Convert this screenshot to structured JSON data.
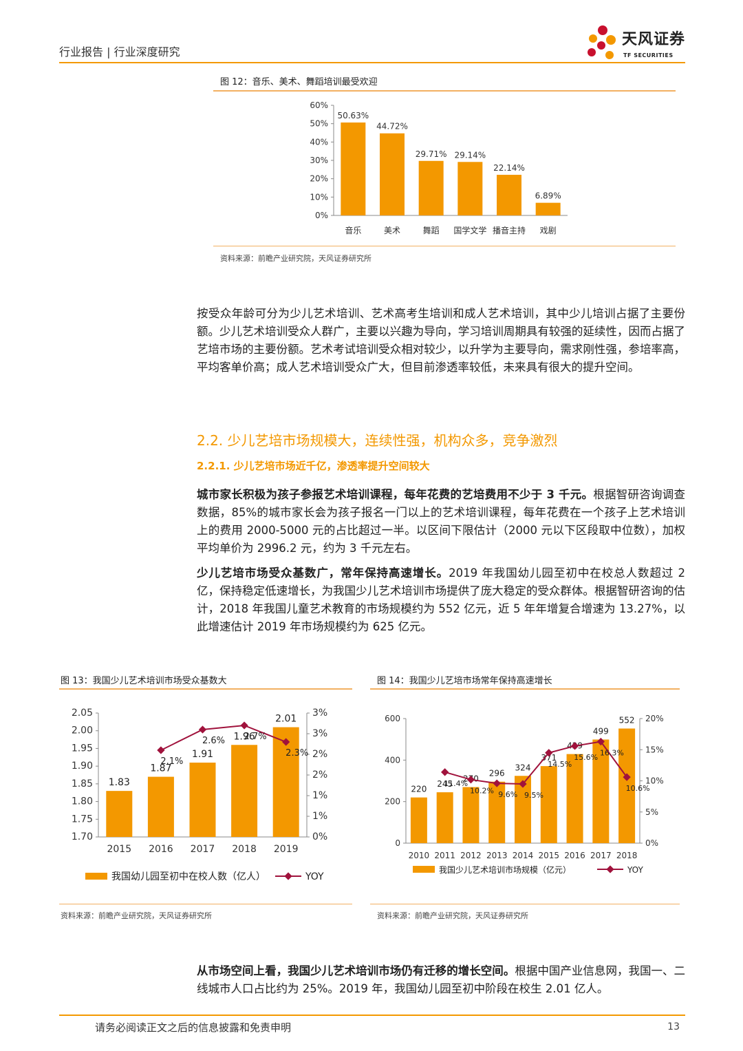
{
  "header": {
    "title": "行业报告 | 行业深度研究"
  },
  "logo": {
    "name_cn": "天风证券",
    "name_en": "TF SECURITIES"
  },
  "figure12": {
    "title": "图 12：音乐、美术、舞蹈培训最受欢迎",
    "source": "资料来源：前瞻产业研究院，天风证券研究所",
    "chart_data": {
      "type": "bar",
      "categories": [
        "音乐",
        "美术",
        "舞蹈",
        "国学文学",
        "播音主持",
        "戏剧"
      ],
      "values": [
        50.63,
        44.72,
        29.71,
        29.14,
        22.14,
        6.89
      ],
      "value_labels": [
        "50.63%",
        "44.72%",
        "29.71%",
        "29.14%",
        "22.14%",
        "6.89%"
      ],
      "yticks": [
        "0%",
        "10%",
        "20%",
        "30%",
        "40%",
        "50%",
        "60%"
      ],
      "ylim": [
        0,
        60
      ],
      "color": "#f39800"
    }
  },
  "paragraph1": "按受众年龄可分为少儿艺术培训、艺术高考生培训和成人艺术培训，其中少儿培训占据了主要份额。少儿艺术培训受众人群广，主要以兴趣为导向，学习培训周期具有较强的延续性，因而占据了艺培市场的主要份额。艺术考试培训受众相对较少，以升学为主要导向，需求刚性强，参培率高，平均客单价高；成人艺术培训受众广大，但目前渗透率较低，未来具有很大的提升空间。",
  "section_h2": "2.2. 少儿艺培市场规模大，连续性强，机构众多，竞争激烈",
  "section_h3": "2.2.1. 少儿艺培市场近千亿，渗透率提升空间较大",
  "paragraph2": {
    "bold": "城市家长积极为孩子参报艺术培训课程，每年花费的艺培费用不少于 3 千元。",
    "rest": "根据智研咨询调查数据，85%的城市家长会为孩子报名一门以上的艺术培训课程，每年花费在一个孩子上艺术培训上的费用 2000-5000 元的占比超过一半。以区间下限估计（2000 元以下区段取中位数），加权平均单价为 2996.2 元，约为 3 千元左右。"
  },
  "paragraph3": {
    "bold": "少儿艺培市场受众基数广，常年保持高速增长。",
    "rest": "2019 年我国幼儿园至初中在校总人数超过 2 亿，保持稳定低速增长，为我国少儿艺术培训市场提供了庞大稳定的受众群体。根据智研咨询的估计，2018 年我国儿童艺术教育的市场规模约为 552 亿元，近 5 年年增复合增速为 13.27%，以此增速估计 2019 年市场规模约为 625 亿元。"
  },
  "figure13": {
    "title": "图 13：我国少儿艺术培训市场受众基数大",
    "source": "资料来源：前瞻产业研究院，天风证券研究所",
    "chart_data": {
      "type": "bar",
      "categories": [
        "2015",
        "2016",
        "2017",
        "2018",
        "2019"
      ],
      "series": [
        {
          "name": "我国幼儿园至初中在校人数（亿人）",
          "type": "bar",
          "values": [
            1.83,
            1.87,
            1.91,
            1.96,
            2.01
          ],
          "labels": [
            "1.83",
            "1.87",
            "1.91",
            "1.96",
            "2.01"
          ],
          "color": "#f39800"
        },
        {
          "name": "YOY",
          "type": "line",
          "values": [
            null,
            2.1,
            2.6,
            2.7,
            2.3
          ],
          "labels": [
            "",
            "2.1%",
            "2.6%",
            "2.7%",
            "2.3%"
          ],
          "color": "#a0123c"
        }
      ],
      "yticks_left": [
        "1.70",
        "1.75",
        "1.80",
        "1.85",
        "1.90",
        "1.95",
        "2.00",
        "2.05"
      ],
      "ylim_left": [
        1.7,
        2.05
      ],
      "yticks_right": [
        "0%",
        "1%",
        "1%",
        "2%",
        "2%",
        "3%",
        "3%"
      ],
      "ylim_right": [
        0,
        3
      ]
    }
  },
  "figure14": {
    "title": "图 14：我国少儿艺培市场常年保持高速增长",
    "source": "资料来源：前瞻产业研究院，天风证券研究所",
    "chart_data": {
      "type": "bar",
      "categories": [
        "2010",
        "2011",
        "2012",
        "2013",
        "2014",
        "2015",
        "2016",
        "2017",
        "2018"
      ],
      "series": [
        {
          "name": "我国少儿艺术培训市场规模（亿元）",
          "type": "bar",
          "values": [
            220,
            245,
            270,
            296,
            324,
            371,
            429,
            499,
            552
          ],
          "labels": [
            "220",
            "245",
            "270",
            "296",
            "324",
            "371",
            "429",
            "499",
            "552"
          ],
          "color": "#f39800"
        },
        {
          "name": "YOY",
          "type": "line",
          "values": [
            null,
            11.4,
            10.2,
            9.6,
            9.5,
            14.5,
            15.6,
            16.3,
            10.6
          ],
          "labels": [
            "",
            "11.4%",
            "10.2%",
            "9.6%",
            "9.5%",
            "14.5%",
            "15.6%",
            "16.3%",
            "10.6%"
          ],
          "color": "#a0123c"
        }
      ],
      "yticks_left": [
        "0",
        "200",
        "400",
        "600"
      ],
      "ylim_left": [
        0,
        600
      ],
      "yticks_right": [
        "0%",
        "5%",
        "10%",
        "15%",
        "20%"
      ],
      "ylim_right": [
        0,
        20
      ]
    }
  },
  "paragraph4": {
    "bold": "从市场空间上看，我国少儿艺术培训市场仍有迁移的增长空间。",
    "rest": "根据中国产业信息网，我国一、二线城市人口占比约为 25%。2019 年，我国幼儿园至初中阶段在校生 2.01 亿人。"
  },
  "footer": {
    "disclaimer": "请务必阅读正文之后的信息披露和免责申明",
    "page": "13"
  }
}
